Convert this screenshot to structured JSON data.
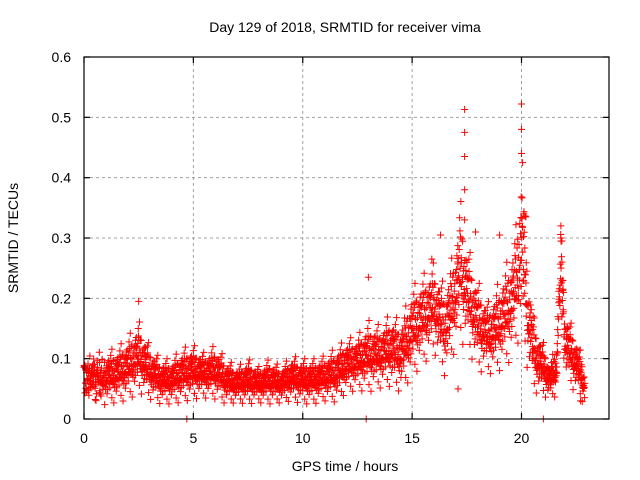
{
  "chart_data": {
    "type": "scatter",
    "title": "Day 129 of 2018, SRMTID for receiver vima",
    "xlabel": "GPS time / hours",
    "ylabel": "SRMTID / TECUs",
    "xlim": [
      0,
      24
    ],
    "ylim": [
      0,
      0.6
    ],
    "xticks": [
      0,
      5,
      10,
      15,
      20
    ],
    "xtick_labels": [
      "0",
      "5",
      "10",
      "15",
      "20"
    ],
    "yticks": [
      0,
      0.1,
      0.2,
      0.3,
      0.4,
      0.5,
      0.6
    ],
    "ytick_labels": [
      "0",
      "0.1",
      "0.2",
      "0.3",
      "0.4",
      "0.5",
      "0.6"
    ],
    "grid": true,
    "legend": "none",
    "marker": "plus",
    "color": "#ff0000",
    "series": [
      {
        "name": "SRMTID",
        "envelope_x": [
          0,
          0.5,
          1,
          1.5,
          2,
          2.5,
          3,
          3.5,
          4,
          4.5,
          5,
          5.5,
          6,
          6.5,
          7,
          7.5,
          8,
          8.5,
          9,
          9.5,
          10,
          10.5,
          11,
          11.5,
          12,
          12.5,
          13,
          13.5,
          14,
          14.5,
          15,
          15.5,
          16,
          16.5,
          17,
          17.2,
          17.5,
          18,
          18.5,
          19,
          19.5,
          19.8,
          20,
          20.3,
          20.6,
          21,
          21.3,
          21.6,
          21.8,
          22,
          22.3,
          22.6,
          22.9
        ],
        "envelope_y_median": [
          0.07,
          0.07,
          0.065,
          0.07,
          0.08,
          0.1,
          0.075,
          0.06,
          0.06,
          0.07,
          0.075,
          0.07,
          0.075,
          0.06,
          0.055,
          0.06,
          0.055,
          0.06,
          0.055,
          0.065,
          0.06,
          0.06,
          0.065,
          0.07,
          0.085,
          0.09,
          0.1,
          0.1,
          0.11,
          0.1,
          0.14,
          0.16,
          0.18,
          0.14,
          0.2,
          0.24,
          0.2,
          0.15,
          0.13,
          0.15,
          0.18,
          0.22,
          0.28,
          0.16,
          0.1,
          0.08,
          0.06,
          0.08,
          0.25,
          0.12,
          0.1,
          0.08,
          0.05
        ],
        "envelope_y_spread": [
          0.03,
          0.03,
          0.03,
          0.03,
          0.035,
          0.04,
          0.03,
          0.025,
          0.025,
          0.03,
          0.03,
          0.025,
          0.03,
          0.025,
          0.02,
          0.025,
          0.02,
          0.025,
          0.02,
          0.025,
          0.025,
          0.025,
          0.025,
          0.03,
          0.03,
          0.03,
          0.04,
          0.035,
          0.04,
          0.04,
          0.05,
          0.05,
          0.05,
          0.05,
          0.06,
          0.08,
          0.06,
          0.05,
          0.04,
          0.05,
          0.06,
          0.07,
          0.1,
          0.06,
          0.04,
          0.03,
          0.02,
          0.03,
          0.05,
          0.04,
          0.035,
          0.03,
          0.02
        ],
        "notable_points": [
          {
            "x": 2.5,
            "y": 0.195
          },
          {
            "x": 4.7,
            "y": 0.0
          },
          {
            "x": 12.9,
            "y": 0.0
          },
          {
            "x": 13.0,
            "y": 0.235
          },
          {
            "x": 15.9,
            "y": 0.265
          },
          {
            "x": 16.3,
            "y": 0.305
          },
          {
            "x": 17.4,
            "y": 0.513
          },
          {
            "x": 17.4,
            "y": 0.475
          },
          {
            "x": 17.4,
            "y": 0.435
          },
          {
            "x": 17.4,
            "y": 0.38
          },
          {
            "x": 17.4,
            "y": 0.33
          },
          {
            "x": 17.1,
            "y": 0.05
          },
          {
            "x": 17.9,
            "y": 0.31
          },
          {
            "x": 19.0,
            "y": 0.305
          },
          {
            "x": 20.0,
            "y": 0.522
          },
          {
            "x": 20.0,
            "y": 0.48
          },
          {
            "x": 20.0,
            "y": 0.44
          },
          {
            "x": 20.05,
            "y": 0.425
          },
          {
            "x": 20.1,
            "y": 0.34
          },
          {
            "x": 20.2,
            "y": 0.335
          },
          {
            "x": 21.0,
            "y": 0.0
          },
          {
            "x": 21.8,
            "y": 0.32
          },
          {
            "x": 21.8,
            "y": 0.3
          },
          {
            "x": 21.85,
            "y": 0.26
          },
          {
            "x": 21.9,
            "y": 0.215
          },
          {
            "x": 22.5,
            "y": 0.09
          },
          {
            "x": 22.7,
            "y": 0.03
          }
        ],
        "sample_count": 2400
      }
    ]
  }
}
